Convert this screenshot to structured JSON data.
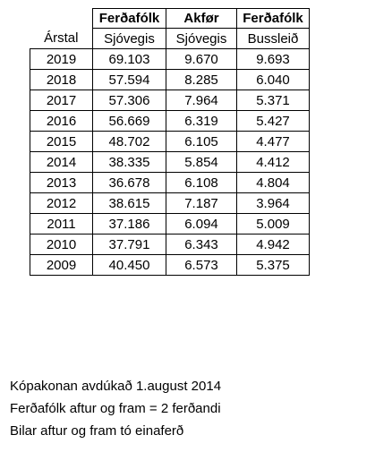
{
  "table": {
    "header_row1": [
      "",
      "Ferðafólk",
      "Akfør",
      "Ferðafólk"
    ],
    "header_row2": [
      "Árstal",
      "Sjóvegis",
      "Sjóvegis",
      "Bussleið"
    ],
    "rows": [
      [
        "2019",
        "69.103",
        "9.670",
        "9.693"
      ],
      [
        "2018",
        "57.594",
        "8.285",
        "6.040"
      ],
      [
        "2017",
        "57.306",
        "7.964",
        "5.371"
      ],
      [
        "2016",
        "56.669",
        "6.319",
        "5.427"
      ],
      [
        "2015",
        "48.702",
        "6.105",
        "4.477"
      ],
      [
        "2014",
        "38.335",
        "5.854",
        "4.412"
      ],
      [
        "2013",
        "36.678",
        "6.108",
        "4.804"
      ],
      [
        "2012",
        "38.615",
        "7.187",
        "3.964"
      ],
      [
        "2011",
        "37.186",
        "6.094",
        "5.009"
      ],
      [
        "2010",
        "37.791",
        "6.343",
        "4.942"
      ],
      [
        "2009",
        "40.450",
        "6.573",
        "5.375"
      ]
    ]
  },
  "notes": [
    "Kópakonan avdúkað 1.august 2014",
    "Ferðafólk aftur og fram = 2 ferðandi",
    "Bilar aftur og fram tó einaferð"
  ]
}
